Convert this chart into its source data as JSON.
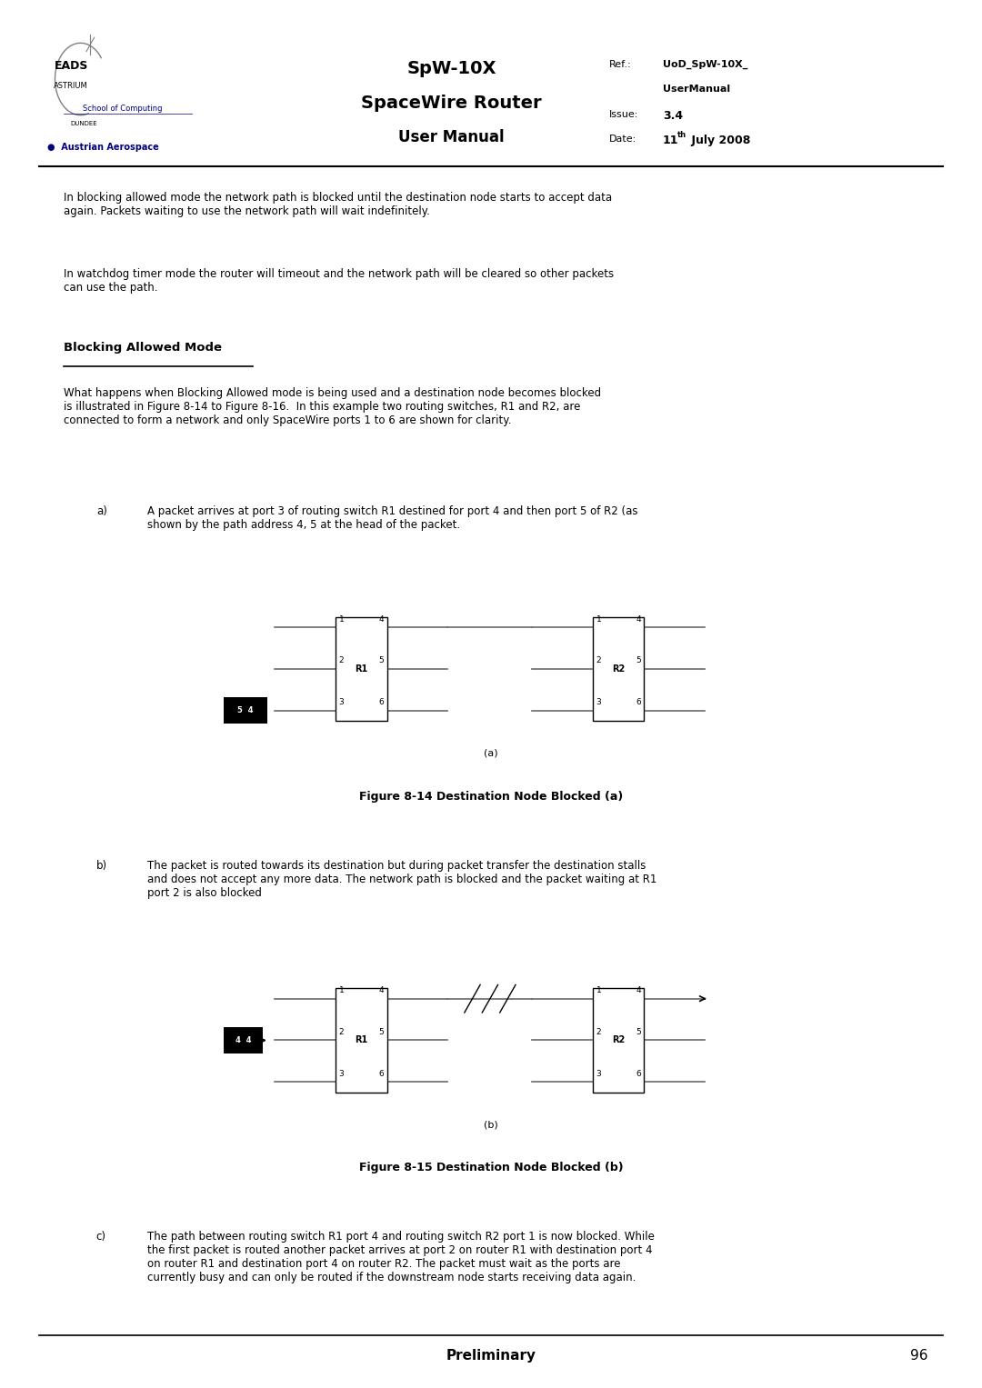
{
  "page_width": 10.8,
  "page_height": 15.27,
  "bg_color": "#ffffff",
  "header": {
    "title1": "SpW-10X",
    "title2": "SpaceWire Router",
    "title3": "User Manual",
    "ref_label": "Ref.:",
    "ref_val": "UoD_SpW-10X_",
    "ref_val2": "UserManual",
    "issue_label": "Issue:",
    "issue_val": "3.4",
    "date_label": "Date:",
    "date_val": "11",
    "date_sup": "th",
    "date_rest": " July 2008"
  },
  "footer_text": "Preliminary",
  "footer_page": "96",
  "para1": "In blocking allowed mode the network path is blocked until the destination node starts to accept data\nagain. Packets waiting to use the network path will wait indefinitely.",
  "para2": "In watchdog timer mode the router will timeout and the network path will be cleared so other packets\ncan use the path.",
  "section_title": "Blocking Allowed Mode",
  "para3": "What happens when Blocking Allowed mode is being used and a destination node becomes blocked\nis illustrated in Figure 8-14 to Figure 8-16.  In this example two routing switches, R1 and R2, are\nconnected to form a network and only SpaceWire ports 1 to 6 are shown for clarity.",
  "item_a_label": "a)",
  "item_a_text": "A packet arrives at port 3 of routing switch R1 destined for port 4 and then port 5 of R2 (as\nshown by the path address 4, 5 at the head of the packet.",
  "fig14_caption": "Figure 8-14 Destination Node Blocked (a)",
  "item_b_label": "b)",
  "item_b_text": "The packet is routed towards its destination but during packet transfer the destination stalls\nand does not accept any more data. The network path is blocked and the packet waiting at R1\nport 2 is also blocked",
  "fig15_caption": "Figure 8-15 Destination Node Blocked (b)",
  "item_c_label": "c)",
  "item_c_text": "The path between routing switch R1 port 4 and routing switch R2 port 1 is now blocked. While\nthe first packet is routed another packet arrives at port 2 on router R1 with destination port 4\non router R1 and destination port 4 on router R2. The packet must wait as the ports are\ncurrently busy and can only be routed if the downstream node starts receiving data again."
}
